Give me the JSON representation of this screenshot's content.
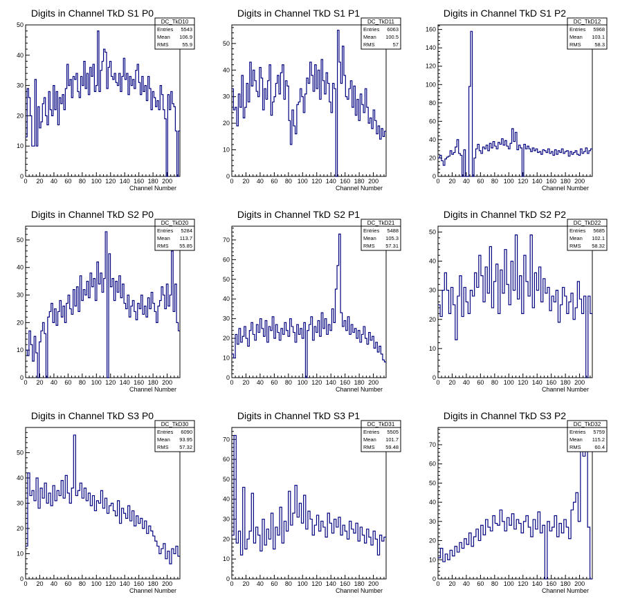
{
  "chart_data": [
    {
      "type": "histogram",
      "title": "Digits in Channel TkD S1 P0",
      "xlabel": "Channel Number",
      "ylabel": "",
      "xlim": [
        0,
        218
      ],
      "ylim": [
        0,
        50
      ],
      "xticks": [
        0,
        20,
        40,
        60,
        80,
        100,
        120,
        140,
        160,
        180,
        200
      ],
      "yticks": [
        0,
        10,
        20,
        30,
        40,
        50
      ],
      "stats": {
        "name": "DC_TkD10",
        "rows": [
          [
            "Entries",
            "5543"
          ],
          [
            "Mean",
            "106.9"
          ],
          [
            "RMS",
            "55.9"
          ]
        ]
      },
      "color": "#000080",
      "values": [
        13,
        29,
        26,
        20,
        10,
        10,
        32,
        10,
        23,
        16,
        18,
        24,
        26,
        20,
        17,
        28,
        22,
        20,
        30,
        22,
        28,
        17,
        26,
        24,
        27,
        22,
        29,
        37,
        30,
        32,
        26,
        33,
        32,
        34,
        28,
        26,
        33,
        30,
        38,
        29,
        34,
        27,
        36,
        33,
        37,
        28,
        30,
        48,
        28,
        35,
        38,
        42,
        41,
        29,
        36,
        38,
        33,
        32,
        34,
        31,
        30,
        34,
        28,
        33,
        39,
        32,
        34,
        27,
        33,
        30,
        32,
        29,
        35,
        37,
        31,
        27,
        33,
        28,
        30,
        25,
        33,
        29,
        22,
        28,
        26,
        23,
        25,
        22,
        30,
        27,
        22,
        19,
        0,
        27,
        22,
        28,
        24,
        23,
        15,
        0,
        15
      ]
    },
    {
      "type": "histogram",
      "title": "Digits in Channel TkD S1 P1",
      "xlabel": "Channel Number",
      "ylabel": "",
      "xlim": [
        0,
        218
      ],
      "ylim": [
        0,
        57
      ],
      "xticks": [
        0,
        20,
        40,
        60,
        80,
        100,
        120,
        140,
        160,
        180,
        200
      ],
      "yticks": [
        0,
        10,
        20,
        30,
        40,
        50
      ],
      "stats": {
        "name": "DC_TkD11",
        "rows": [
          [
            "Entries",
            "6063"
          ],
          [
            "Mean",
            "100.5"
          ],
          [
            "RMS",
            "57"
          ]
        ]
      },
      "color": "#000080",
      "values": [
        33,
        25,
        26,
        19,
        31,
        26,
        38,
        22,
        26,
        35,
        28,
        43,
        34,
        40,
        36,
        32,
        30,
        41,
        37,
        25,
        33,
        29,
        36,
        42,
        23,
        28,
        30,
        35,
        38,
        31,
        39,
        42,
        29,
        36,
        34,
        21,
        12,
        25,
        19,
        16,
        27,
        28,
        33,
        30,
        24,
        31,
        37,
        35,
        43,
        38,
        32,
        42,
        33,
        40,
        29,
        44,
        36,
        31,
        39,
        35,
        28,
        24,
        35,
        33,
        0,
        55,
        43,
        35,
        49,
        38,
        30,
        29,
        33,
        36,
        26,
        34,
        23,
        29,
        21,
        31,
        27,
        24,
        33,
        26,
        20,
        22,
        18,
        25,
        21,
        16,
        19,
        14,
        18,
        15,
        17
      ]
    },
    {
      "type": "histogram",
      "title": "Digits in Channel TkD S1 P2",
      "xlabel": "Channel Number",
      "ylabel": "",
      "xlim": [
        0,
        218
      ],
      "ylim": [
        0,
        165
      ],
      "xticks": [
        0,
        20,
        40,
        60,
        80,
        100,
        120,
        140,
        160,
        180,
        200
      ],
      "yticks": [
        0,
        20,
        40,
        60,
        80,
        100,
        120,
        140,
        160
      ],
      "stats": {
        "name": "DC_TkD12",
        "rows": [
          [
            "Entries",
            "5968"
          ],
          [
            "Mean",
            "103.1"
          ],
          [
            "RMS",
            "58.3"
          ]
        ]
      },
      "color": "#000080",
      "values": [
        20,
        23,
        17,
        12,
        19,
        21,
        22,
        28,
        24,
        26,
        32,
        40,
        25,
        23,
        0,
        29,
        0,
        0,
        98,
        158,
        0,
        20,
        30,
        35,
        28,
        25,
        32,
        30,
        34,
        28,
        36,
        31,
        38,
        33,
        30,
        37,
        35,
        41,
        34,
        39,
        33,
        30,
        36,
        52,
        38,
        48,
        29,
        34,
        31,
        0,
        35,
        30,
        33,
        30,
        27,
        31,
        28,
        30,
        26,
        27,
        24,
        29,
        28,
        26,
        30,
        25,
        27,
        23,
        29,
        24,
        28,
        26,
        30,
        25,
        27,
        28,
        22,
        27,
        24,
        26,
        28,
        24,
        23,
        30,
        25,
        27,
        31,
        25,
        28,
        30
      ]
    },
    {
      "type": "histogram",
      "title": "Digits in Channel TkD S2 P0",
      "xlabel": "Channel Number",
      "ylabel": "",
      "xlim": [
        0,
        218
      ],
      "ylim": [
        0,
        55
      ],
      "xticks": [
        0,
        20,
        40,
        60,
        80,
        100,
        120,
        140,
        160,
        180,
        200
      ],
      "yticks": [
        0,
        10,
        20,
        30,
        40,
        50
      ],
      "stats": {
        "name": "DC_TkD20",
        "rows": [
          [
            "Entries",
            "5284"
          ],
          [
            "Mean",
            "113.7"
          ],
          [
            "RMS",
            "55.85"
          ]
        ]
      },
      "color": "#000080",
      "values": [
        10,
        8,
        17,
        12,
        6,
        15,
        9,
        0,
        13,
        17,
        20,
        16,
        0,
        22,
        24,
        27,
        20,
        25,
        19,
        24,
        28,
        22,
        26,
        20,
        27,
        30,
        25,
        23,
        32,
        26,
        33,
        24,
        37,
        28,
        32,
        30,
        35,
        29,
        38,
        33,
        36,
        28,
        42,
        34,
        38,
        31,
        36,
        53,
        0,
        45,
        33,
        36,
        28,
        35,
        31,
        37,
        29,
        34,
        27,
        25,
        30,
        22,
        26,
        28,
        24,
        21,
        27,
        25,
        30,
        23,
        26,
        22,
        29,
        25,
        31,
        27,
        24,
        20,
        26,
        28,
        33,
        30,
        25,
        34,
        26,
        30,
        46,
        24,
        34,
        20,
        17
      ]
    },
    {
      "type": "histogram",
      "title": "Digits in Channel TkD S2 P1",
      "xlabel": "Channel Number",
      "ylabel": "",
      "xlim": [
        0,
        218
      ],
      "ylim": [
        0,
        77
      ],
      "xticks": [
        0,
        20,
        40,
        60,
        80,
        100,
        120,
        140,
        160,
        180,
        200
      ],
      "yticks": [
        0,
        10,
        20,
        30,
        40,
        50,
        60,
        70
      ],
      "stats": {
        "name": "DC_TkD21",
        "rows": [
          [
            "Entries",
            "5488"
          ],
          [
            "Mean",
            "105.3"
          ],
          [
            "RMS",
            "57.31"
          ]
        ]
      },
      "color": "#000080",
      "values": [
        12,
        10,
        22,
        17,
        25,
        18,
        21,
        26,
        20,
        16,
        24,
        28,
        22,
        19,
        27,
        23,
        30,
        25,
        21,
        29,
        18,
        26,
        24,
        31,
        20,
        27,
        23,
        19,
        25,
        22,
        28,
        24,
        21,
        30,
        26,
        23,
        18,
        27,
        22,
        25,
        20,
        28,
        0,
        24,
        27,
        31,
        19,
        26,
        23,
        29,
        21,
        33,
        25,
        30,
        22,
        27,
        24,
        35,
        28,
        45,
        57,
        73,
        33,
        26,
        29,
        24,
        31,
        22,
        27,
        23,
        25,
        20,
        24,
        18,
        22,
        26,
        20,
        17,
        23,
        19,
        21,
        15,
        18,
        13,
        16,
        12,
        9,
        8
      ]
    },
    {
      "type": "histogram",
      "title": "Digits in Channel TkD S2 P2",
      "xlabel": "Channel Number",
      "ylabel": "",
      "xlim": [
        0,
        218
      ],
      "ylim": [
        0,
        52
      ],
      "xticks": [
        0,
        20,
        40,
        60,
        80,
        100,
        120,
        140,
        160,
        180,
        200
      ],
      "yticks": [
        0,
        10,
        20,
        30,
        40,
        50
      ],
      "stats": {
        "name": "DC_TkD22",
        "rows": [
          [
            "Entries",
            "5685"
          ],
          [
            "Mean",
            "102.1"
          ],
          [
            "RMS",
            "58.32"
          ]
        ]
      },
      "color": "#000080",
      "values": [
        25,
        21,
        30,
        36,
        30,
        22,
        31,
        25,
        13,
        28,
        35,
        21,
        31,
        26,
        22,
        30,
        28,
        36,
        31,
        42,
        35,
        26,
        38,
        29,
        45,
        24,
        33,
        39,
        22,
        37,
        29,
        44,
        32,
        25,
        40,
        30,
        49,
        27,
        35,
        22,
        42,
        33,
        28,
        49,
        24,
        36,
        30,
        38,
        26,
        34,
        29,
        31,
        23,
        28,
        26,
        30,
        19,
        25,
        31,
        28,
        22,
        26,
        29,
        20,
        24,
        33,
        27,
        22,
        28,
        0,
        28,
        22
      ]
    },
    {
      "type": "histogram",
      "title": "Digits in Channel TkD S3 P0",
      "xlabel": "Channel Number",
      "ylabel": "",
      "xlim": [
        0,
        218
      ],
      "ylim": [
        0,
        60
      ],
      "xticks": [
        0,
        20,
        40,
        60,
        80,
        100,
        120,
        140,
        160,
        180,
        200
      ],
      "yticks": [
        0,
        10,
        20,
        30,
        40,
        50
      ],
      "stats": {
        "name": "DC_TkD30",
        "rows": [
          [
            "Entries",
            "6090"
          ],
          [
            "Mean",
            "93.95"
          ],
          [
            "RMS",
            "57.32"
          ]
        ]
      },
      "color": "#000080",
      "values": [
        13,
        42,
        33,
        35,
        31,
        40,
        28,
        36,
        32,
        38,
        30,
        34,
        29,
        37,
        31,
        35,
        33,
        39,
        32,
        41,
        34,
        30,
        36,
        57,
        33,
        35,
        38,
        32,
        36,
        31,
        34,
        29,
        33,
        27,
        31,
        30,
        35,
        28,
        32,
        26,
        29,
        30,
        27,
        25,
        31,
        22,
        28,
        26,
        24,
        29,
        23,
        27,
        21,
        25,
        22,
        24,
        20,
        23,
        18,
        21,
        19,
        17,
        15,
        13,
        10,
        12,
        14,
        8,
        11,
        6,
        12,
        10,
        13,
        9
      ]
    },
    {
      "type": "histogram",
      "title": "Digits in Channel TkD S3 P1",
      "xlabel": "Channel Number",
      "ylabel": "",
      "xlim": [
        0,
        218
      ],
      "ylim": [
        0,
        76
      ],
      "xticks": [
        0,
        20,
        40,
        60,
        80,
        100,
        120,
        140,
        160,
        180,
        200
      ],
      "yticks": [
        0,
        10,
        20,
        30,
        40,
        50,
        60,
        70
      ],
      "stats": {
        "name": "DC_TkD31",
        "rows": [
          [
            "Entries",
            "5505"
          ],
          [
            "Mean",
            "101.7"
          ],
          [
            "RMS",
            "59.48"
          ]
        ]
      },
      "color": "#000080",
      "values": [
        22,
        72,
        18,
        24,
        12,
        46,
        15,
        20,
        24,
        43,
        18,
        26,
        22,
        14,
        30,
        17,
        25,
        20,
        33,
        15,
        26,
        22,
        36,
        18,
        29,
        24,
        44,
        27,
        33,
        47,
        31,
        38,
        28,
        42,
        25,
        34,
        30,
        22,
        27,
        32,
        24,
        29,
        26,
        21,
        33,
        28,
        23,
        30,
        26,
        31,
        22,
        27,
        24,
        20,
        29,
        25,
        23,
        28,
        19,
        26,
        22,
        18,
        25,
        21,
        17,
        24,
        20,
        12,
        22,
        19,
        21
      ]
    },
    {
      "type": "histogram",
      "title": "Digits in Channel TkD S3 P2",
      "xlabel": "Channel Number",
      "ylabel": "",
      "xlim": [
        0,
        218
      ],
      "ylim": [
        0,
        79
      ],
      "xticks": [
        0,
        20,
        40,
        60,
        80,
        100,
        120,
        140,
        160,
        180,
        200
      ],
      "yticks": [
        0,
        10,
        20,
        30,
        40,
        50,
        60,
        70
      ],
      "stats": {
        "name": "DC_TkD32",
        "rows": [
          [
            "Entries",
            "5759"
          ],
          [
            "Mean",
            "115.2"
          ],
          [
            "RMS",
            "60.4"
          ]
        ]
      },
      "color": "#000080",
      "values": [
        11,
        16,
        9,
        13,
        10,
        15,
        12,
        17,
        14,
        19,
        16,
        21,
        18,
        24,
        17,
        22,
        26,
        20,
        28,
        23,
        31,
        27,
        25,
        33,
        29,
        28,
        36,
        30,
        25,
        32,
        28,
        34,
        26,
        31,
        29,
        24,
        30,
        33,
        27,
        22,
        31,
        26,
        35,
        24,
        28,
        0,
        30,
        25,
        27,
        33,
        22,
        29,
        24,
        31,
        27,
        21,
        36,
        40,
        45,
        30,
        75,
        64,
        70,
        27,
        0
      ]
    }
  ]
}
